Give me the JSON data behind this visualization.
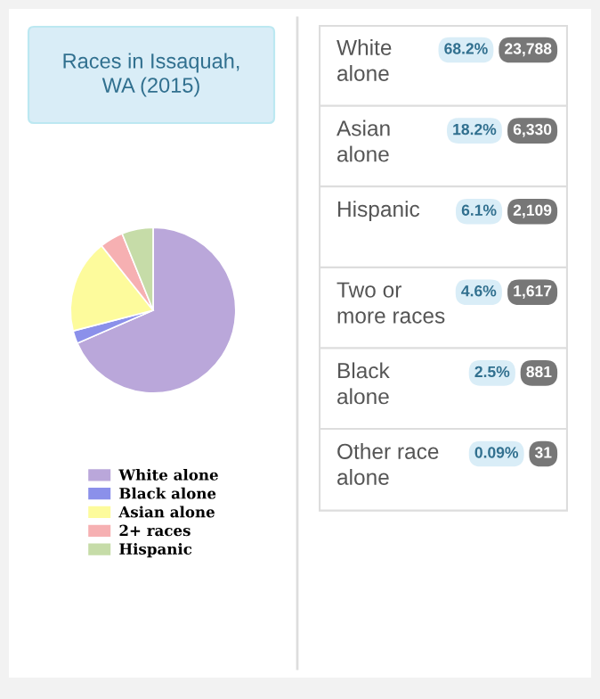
{
  "chart_data": [
    {
      "type": "pie",
      "title": "Races in Issaquah, WA (2015)",
      "categories": [
        "White alone",
        "Black alone",
        "Asian alone",
        "2+ races",
        "Hispanic"
      ],
      "values": [
        68.2,
        2.5,
        18.2,
        4.6,
        6.1
      ],
      "colors": [
        "#baa7da",
        "#8b90ea",
        "#fdfb9c",
        "#f6b0b2",
        "#c6dca8"
      ],
      "legend": "bottom"
    },
    {
      "type": "other",
      "categories": [
        "White alone",
        "Asian alone",
        "Hispanic",
        "Two or more races",
        "Black alone",
        "Other race alone"
      ],
      "annotations": [
        "68.2%",
        "23,788",
        "18.2%",
        "6,330",
        "6.1%",
        "2,109",
        "4.6%",
        "1,617",
        "2.5%",
        "881",
        "0.09%",
        "31"
      ]
    }
  ]
}
